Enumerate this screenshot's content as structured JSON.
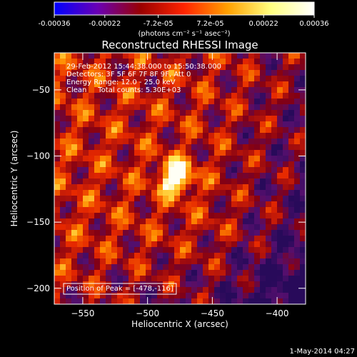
{
  "colorbar": {
    "tick_labels": [
      "-0.00036",
      "-0.00022",
      "-7.2e-05",
      "7.2e-05",
      "0.00022",
      "0.00036"
    ],
    "tick_values": [
      -0.00036,
      -0.00022,
      -7.2e-05,
      7.2e-05,
      0.00022,
      0.00036
    ],
    "range": [
      -0.00036,
      0.00036
    ],
    "unit_label": "(photons cm⁻² s⁻¹ asec⁻²)",
    "colors": [
      "#0000ff",
      "#6a00b4",
      "#9a0000",
      "#ff2400",
      "#ffa000",
      "#ffff80",
      "#ffffff"
    ]
  },
  "chart_data": {
    "type": "heatmap",
    "title": "Reconstructed RHESSI Image",
    "xlabel": "Heliocentric X (arcsec)",
    "ylabel": "Heliocentric Y (arcsec)",
    "xlim": [
      -572,
      -378
    ],
    "ylim": [
      -212,
      -22
    ],
    "x_ticks": [
      -550,
      -500,
      -450,
      -400
    ],
    "y_ticks": [
      -50,
      -100,
      -150,
      -200
    ],
    "x_tick_labels": [
      "−550",
      "−500",
      "−450",
      "−400"
    ],
    "y_tick_labels": [
      "−50",
      "−100",
      "−150",
      "−200"
    ],
    "peak": {
      "x": -478,
      "y": -116
    },
    "info_lines": [
      "29-Feb-2012 15:44:38.000 to 15:50:38.000",
      "Detectors: 3F 5F 6F 7F 8F 9F, Att 0",
      "Energy Range: 12.0 - 25.0 keV",
      "Clean     Total counts: 5.30E+03"
    ],
    "peak_label": "Position of Peak = [-478,-116]"
  },
  "footer": {
    "date": "1-May-2014 04:27"
  }
}
